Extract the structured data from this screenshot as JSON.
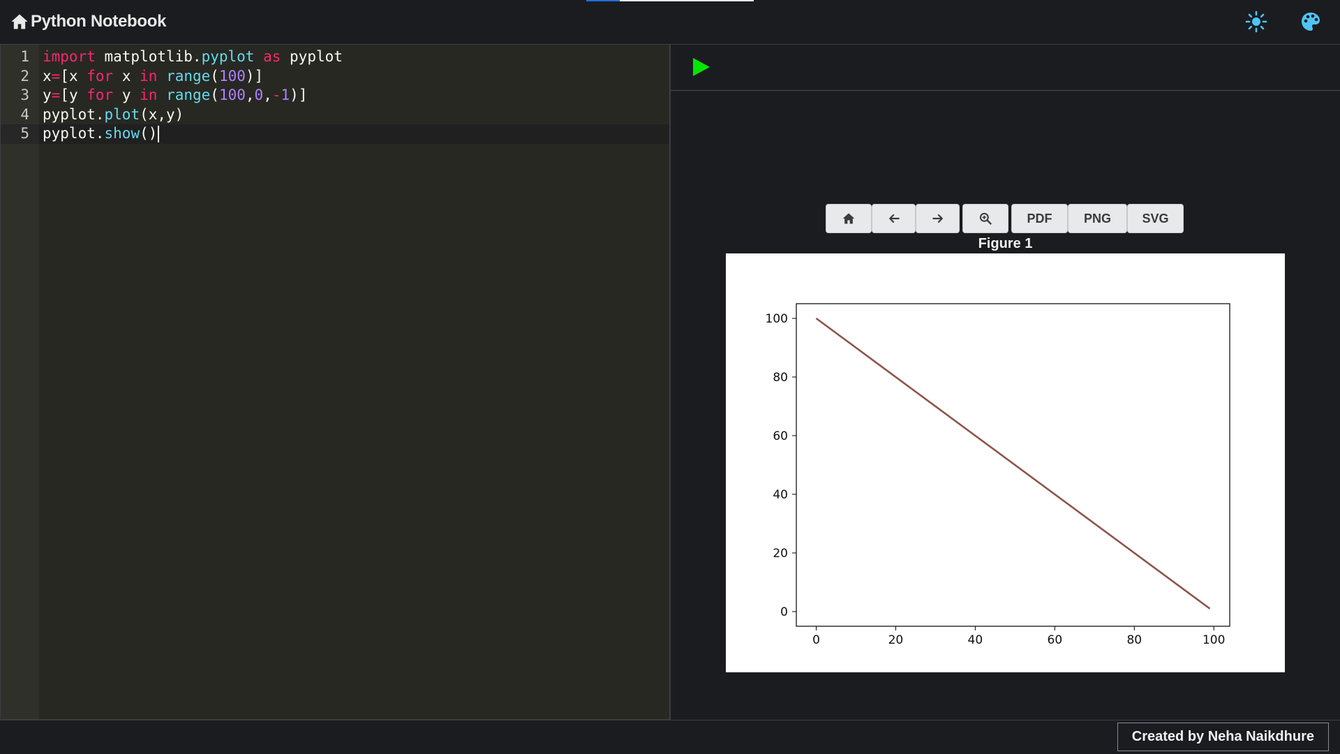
{
  "header": {
    "title": "Python Notebook",
    "icons": [
      "home-icon",
      "sun-icon",
      "palette-icon"
    ],
    "accent_color": "#4fc3f7"
  },
  "editor": {
    "lines": [
      {
        "number": "1"
      },
      {
        "number": "2"
      },
      {
        "number": "3"
      },
      {
        "number": "4"
      },
      {
        "number": "5"
      }
    ],
    "code": [
      "import matplotlib.pyplot as pyplot",
      "x=[x for x in range(100)]",
      "y=[y for y in range(100,0,-1)]",
      "pyplot.plot(x,y)",
      "pyplot.show()"
    ],
    "active_line": 5
  },
  "output": {
    "run_color": "#00e600",
    "toolbar": {
      "home_icon": "home-icon",
      "back_icon": "arrow-left-icon",
      "forward_icon": "arrow-right-icon",
      "zoom_icon": "zoom-icon",
      "pdf_label": "PDF",
      "png_label": "PNG",
      "svg_label": "SVG"
    },
    "figure_title": "Figure 1"
  },
  "chart_data": {
    "type": "line",
    "series": [
      {
        "x": [
          0,
          99
        ],
        "y": [
          100,
          1
        ],
        "color": "#8c564b"
      }
    ],
    "xlim": [
      -5,
      104
    ],
    "ylim": [
      -5,
      105
    ],
    "xticks": [
      0,
      20,
      40,
      60,
      80,
      100
    ],
    "yticks": [
      0,
      20,
      40,
      60,
      80,
      100
    ],
    "grid": false,
    "title": "",
    "xlabel": "",
    "ylabel": ""
  },
  "footer": {
    "credit": "Created by Neha Naikdhure"
  }
}
